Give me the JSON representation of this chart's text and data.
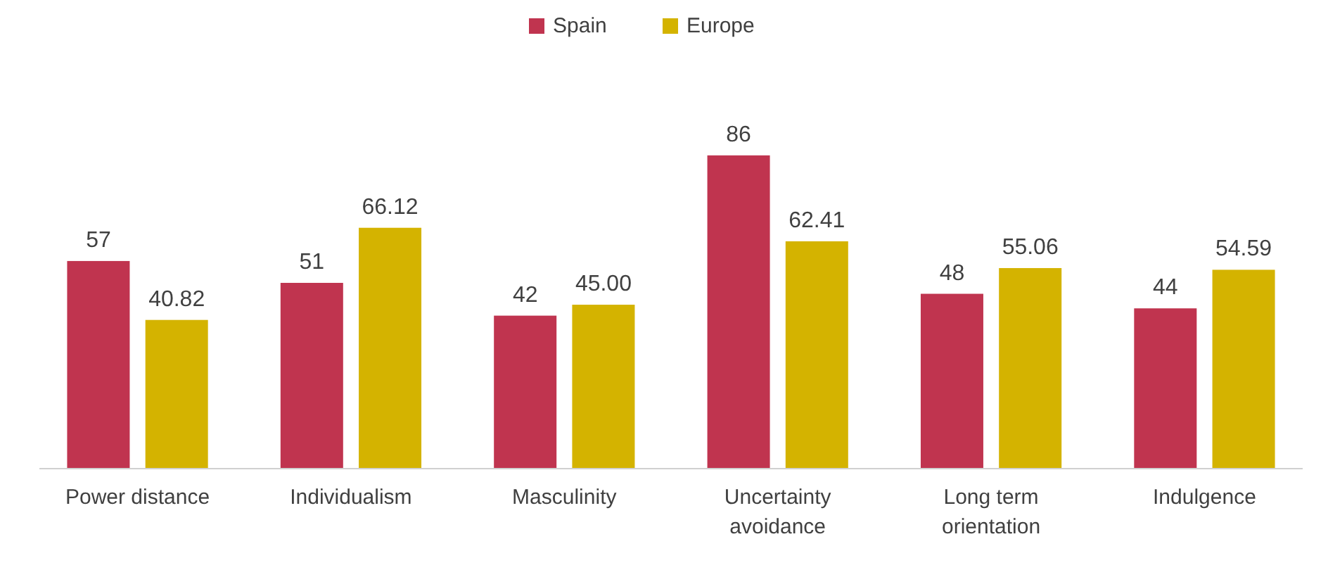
{
  "chart_data": {
    "type": "bar",
    "relative": false,
    "categories": [
      "Power distance",
      "Individualism",
      "Masculinity",
      "Uncertainty avoidance",
      "Long term orientation",
      "Indulgence"
    ],
    "series": [
      {
        "name": "Spain",
        "color": "#c0344f",
        "values": [
          57,
          51,
          42,
          86,
          48,
          44
        ],
        "value_labels": [
          "57",
          "51",
          "42",
          "86",
          "48",
          "44"
        ]
      },
      {
        "name": "Europe",
        "color": "#d4b300",
        "values": [
          40.82,
          66.12,
          45.0,
          62.41,
          55.06,
          54.59
        ],
        "value_labels": [
          "40.82",
          "66.12",
          "45.00",
          "62.41",
          "55.06",
          "54.59"
        ]
      }
    ],
    "legend": "top"
  }
}
